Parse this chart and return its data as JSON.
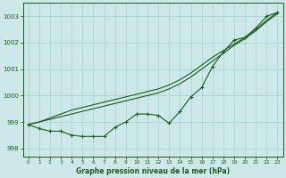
{
  "title": "Graphe pression niveau de la mer (hPa)",
  "bg_color": "#cce8e8",
  "grid_color": "#aad4d4",
  "line_color": "#1a5c1a",
  "xlim": [
    -0.5,
    23.5
  ],
  "ylim": [
    997.7,
    1003.5
  ],
  "yticks": [
    998,
    999,
    1000,
    1001,
    1002,
    1003
  ],
  "xticks": [
    0,
    1,
    2,
    3,
    4,
    5,
    6,
    7,
    8,
    9,
    10,
    11,
    12,
    13,
    14,
    15,
    16,
    17,
    18,
    19,
    20,
    21,
    22,
    23
  ],
  "line_straight1": [
    998.9,
    999.0,
    999.1,
    999.2,
    999.3,
    999.4,
    999.5,
    999.6,
    999.7,
    999.8,
    999.9,
    1000.0,
    1000.1,
    1000.25,
    1000.45,
    1000.7,
    1001.0,
    1001.3,
    1001.6,
    1001.9,
    1002.15,
    1002.45,
    1002.8,
    1003.1
  ],
  "line_straight2": [
    998.9,
    999.0,
    999.15,
    999.3,
    999.45,
    999.55,
    999.65,
    999.75,
    999.85,
    999.95,
    1000.05,
    1000.15,
    1000.25,
    1000.4,
    1000.6,
    1000.85,
    1001.15,
    1001.45,
    1001.7,
    1001.95,
    1002.2,
    1002.5,
    1002.85,
    1003.15
  ],
  "line_dip": [
    998.9,
    998.75,
    998.65,
    998.65,
    998.5,
    998.45,
    998.45,
    998.45,
    998.8,
    999.0,
    999.3,
    999.3,
    999.25,
    998.95,
    999.4,
    999.95,
    1000.3,
    1001.1,
    1001.65,
    1002.1,
    1002.2,
    1002.55,
    1003.0,
    1003.15
  ]
}
